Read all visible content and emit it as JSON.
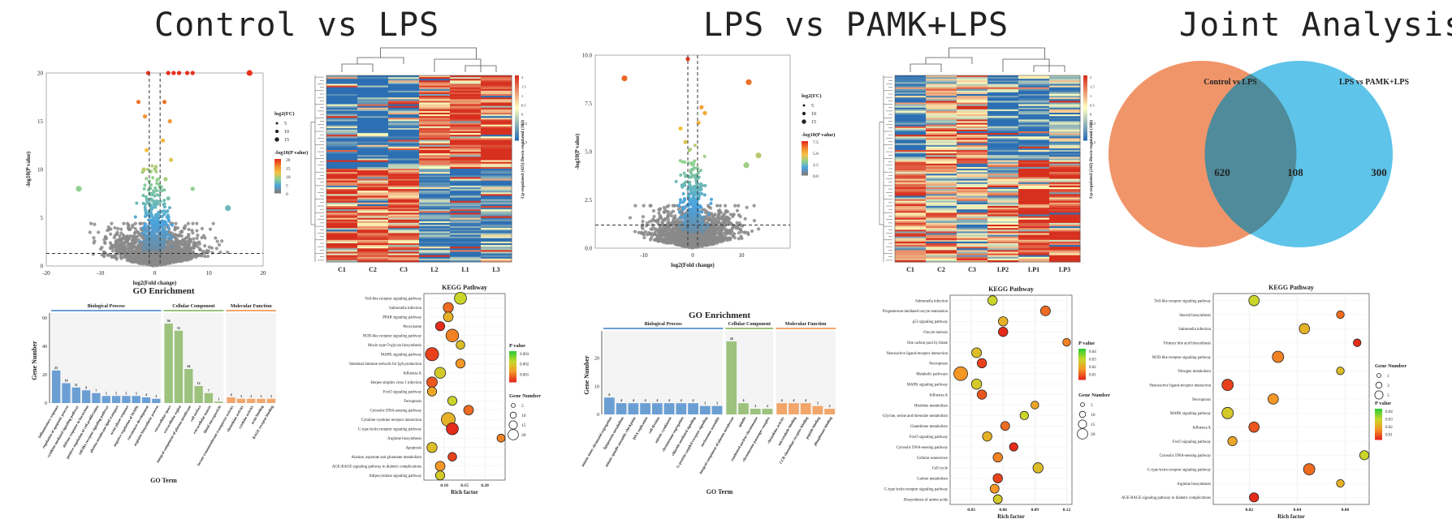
{
  "titles": {
    "control_vs_lps": "Control vs LPS",
    "lps_vs_pamk": "LPS vs PAMK+LPS",
    "joint": "Joint Analysis"
  },
  "colors": {
    "gene_bars_bp": "#6b9fd4",
    "gene_bars_cc": "#9cc27d",
    "gene_bars_mf": "#f2a66b",
    "venn_left": "#f0956a",
    "venn_right": "#5ec4ea",
    "heat_high": "#d7301f",
    "heat_mid": "#ffffbf",
    "heat_low": "#2c6fb3"
  },
  "chart_data": [
    {
      "id": "volcano1",
      "type": "scatter",
      "title": "",
      "xlabel": "log2(Fold change)",
      "ylabel": "-log10(P value)",
      "xlim": [
        -20,
        20
      ],
      "ylim": [
        0,
        20
      ],
      "x_ticks": [
        "-20",
        "-10",
        "0",
        "10",
        "20"
      ],
      "y_ticks": [
        "0",
        "5",
        "10",
        "15",
        "20"
      ],
      "legend_size_title": "log2(FC)",
      "legend_size_values": [
        "5",
        "10",
        "15"
      ],
      "legend_color_title": "-log10(P value)",
      "legend_color_values": [
        "20",
        "15",
        "10",
        "5",
        "0"
      ],
      "highlight_points": [
        {
          "x": 17.5,
          "y": 20
        },
        {
          "x": 2.5,
          "y": 20
        },
        {
          "x": 3.5,
          "y": 20
        },
        {
          "x": 4.5,
          "y": 20
        },
        {
          "x": 6,
          "y": 20
        },
        {
          "x": 7,
          "y": 20
        },
        {
          "x": -1.2,
          "y": 20
        },
        {
          "x": -3,
          "y": 17
        },
        {
          "x": 1.8,
          "y": 17
        },
        {
          "x": -1.8,
          "y": 15.5
        },
        {
          "x": 2.8,
          "y": 15
        },
        {
          "x": 1.5,
          "y": 13
        },
        {
          "x": -1.5,
          "y": 12
        },
        {
          "x": 3,
          "y": 11
        },
        {
          "x": -2,
          "y": 10
        },
        {
          "x": 2,
          "y": 9
        },
        {
          "x": 7,
          "y": 8
        },
        {
          "x": 13.5,
          "y": 6
        },
        {
          "x": -14,
          "y": 8
        },
        {
          "x": 2.5,
          "y": 7
        }
      ]
    },
    {
      "id": "heatmap1",
      "type": "heatmap",
      "columns": [
        "C1",
        "C2",
        "C3",
        "L2",
        "L1",
        "L3"
      ],
      "side_label": "Up-regulated (425)   Down-regulated (303)",
      "scale": [
        "2",
        "1.5",
        "1",
        "0.5",
        "0",
        "-0.5",
        "-1",
        "-1.5"
      ]
    },
    {
      "id": "go1",
      "type": "bar",
      "title": "GO Enrichment",
      "xlabel": "GO Term",
      "ylabel": "Gene Number",
      "ylim": [
        0,
        60
      ],
      "y_ticks": [
        "0",
        "20",
        "40",
        "60"
      ],
      "groups": [
        "Biological Process",
        "Cellular Component",
        "Molecular Function"
      ],
      "categories": [
        "Inflammatory response",
        "regulation of apoptotic process",
        "cytokine-mediated signaling pathway",
        "defense response to bacterium",
        "positive regulation of cell proliferation",
        "toll-like receptor signaling pathway",
        "plasma membrane lipid transport",
        "acute phase response",
        "negative regulation of MAPK",
        "vasculature development",
        "arginine biosynthetic process",
        "extracellular space",
        "extracellular region",
        "integral component of plasma membrane",
        "cell surface",
        "extracellular matrix",
        "blood microparticle",
        "lactate transmembrane transporter activity",
        "chemokine activity",
        "cytokine activity",
        "actin binding",
        "RAGE receptor binding"
      ],
      "group_of": [
        0,
        0,
        0,
        0,
        0,
        0,
        0,
        0,
        0,
        0,
        0,
        1,
        1,
        1,
        1,
        1,
        1,
        2,
        2,
        2,
        2,
        2
      ],
      "values": [
        23,
        14,
        11,
        9,
        7,
        5,
        5,
        5,
        5,
        4,
        3,
        56,
        51,
        24,
        12,
        7,
        1,
        4,
        3,
        3,
        3,
        3
      ]
    },
    {
      "id": "kegg1",
      "type": "scatter",
      "title": "KEGG Pathway",
      "xlabel": "Rich factor",
      "x_ticks": [
        "0.10",
        "0.15",
        "0.20"
      ],
      "xlim": [
        0.05,
        0.25
      ],
      "legend_color_title": "P value",
      "legend_color_values": [
        "0.003",
        "0.002",
        "0.001"
      ],
      "legend_size_title": "Gene Number",
      "legend_size_values": [
        "5",
        "10",
        "15",
        "20"
      ],
      "categories": [
        "Toll-like receptor signaling pathway",
        "Salmonella infection",
        "PPAR signaling pathway",
        "Peroxisome",
        "NOD-like receptor signaling pathway",
        "Mucin type O-glycan biosynthesis",
        "MAPK signaling pathway",
        "Intestinal immune network for IgA production",
        "Influenza A",
        "Herpes simplex virus 1 infection",
        "FoxO signaling pathway",
        "Ferroptosis",
        "Cytosolic DNA-sensing pathway",
        "Cytokine-cytokine receptor interaction",
        "C-type lectin receptor signaling pathway",
        "Arginine biosynthesis",
        "Apoptosis",
        "Alanine, aspartate and glutamate metabolism",
        "AGE-RAGE signaling pathway in diabetic complications",
        "Adipocytokine signaling pathway"
      ],
      "x": [
        0.14,
        0.11,
        0.11,
        0.09,
        0.12,
        0.14,
        0.07,
        0.14,
        0.09,
        0.07,
        0.07,
        0.12,
        0.16,
        0.11,
        0.12,
        0.24,
        0.07,
        0.12,
        0.09,
        0.09
      ],
      "size": [
        12,
        7,
        6,
        5,
        14,
        4,
        16,
        5,
        9,
        8,
        5,
        5,
        6,
        18,
        12,
        3,
        7,
        4,
        6,
        5
      ]
    },
    {
      "id": "volcano2",
      "type": "scatter",
      "xlabel": "log2(Fold change)",
      "ylabel": "-log10(P value)",
      "xlim": [
        -20,
        20
      ],
      "ylim": [
        0,
        10
      ],
      "x_ticks": [
        "-10",
        "0",
        "10"
      ],
      "y_ticks": [
        "0.0",
        "2.5",
        "5.0",
        "7.5",
        "10.0"
      ],
      "legend_size_title": "log2(FC)",
      "legend_size_values": [
        "5",
        "10",
        "15"
      ],
      "legend_color_title": "-log10(P value)",
      "legend_color_values": [
        "7.5",
        "5.0",
        "2.5",
        "0.0"
      ],
      "highlight_points": [
        {
          "x": -14,
          "y": 8.8
        },
        {
          "x": 11.5,
          "y": 8.6
        },
        {
          "x": -1,
          "y": 9.8
        },
        {
          "x": 1.8,
          "y": 7.3
        },
        {
          "x": 2.5,
          "y": 7.0
        },
        {
          "x": 1.2,
          "y": 6.5
        },
        {
          "x": -2.5,
          "y": 6.2
        },
        {
          "x": 13.5,
          "y": 4.8
        },
        {
          "x": 11,
          "y": 4.3
        },
        {
          "x": -1.5,
          "y": 5.5
        }
      ]
    },
    {
      "id": "heatmap2",
      "type": "heatmap",
      "columns": [
        "C1",
        "C2",
        "C3",
        "LP2",
        "LP1",
        "LP3"
      ],
      "side_label": "Up-regulated (242)   Down-regulated (166)",
      "scale": [
        "2",
        "1.5",
        "1",
        "0.5",
        "0",
        "-0.5",
        "-1",
        "-1.5"
      ]
    },
    {
      "id": "go2",
      "type": "bar",
      "title": "GO Enrichment",
      "xlabel": "GO Term",
      "ylabel": "Gene Number",
      "ylim": [
        0,
        28
      ],
      "y_ticks": [
        "0",
        "10",
        "20"
      ],
      "groups": [
        "Biological Process",
        "Cellular Component",
        "Molecular Function"
      ],
      "categories": [
        "mitotic sister chromatid segregation",
        "lipoprotein metabolism",
        "mitotic spindle assembly checkpoint",
        "DNA replication",
        "cell division",
        "mitotic cytokinesis",
        "chromosome segregation",
        "chloride-mediated signaling",
        "G-protein coupled receptor signaling",
        "nucleosome assembly",
        "integral component of plasma membrane",
        "spindle",
        "condensed nuclear chromosome",
        "chromosome passenger complex",
        "chemokine activity",
        "microtubule binding",
        "CCR chemokine receptor binding",
        "peptide binding",
        "phosphatase binding"
      ],
      "group_of": [
        0,
        0,
        0,
        0,
        0,
        0,
        0,
        0,
        0,
        0,
        1,
        1,
        1,
        1,
        2,
        2,
        2,
        2,
        2
      ],
      "values": [
        6,
        4,
        4,
        4,
        4,
        4,
        4,
        4,
        3,
        3,
        26,
        4,
        2,
        2,
        4,
        4,
        4,
        3,
        2
      ]
    },
    {
      "id": "kegg2",
      "type": "scatter",
      "title": "KEGG Pathway",
      "xlabel": "Rich factor",
      "x_ticks": [
        "0.03",
        "0.06",
        "0.09",
        "0.12"
      ],
      "xlim": [
        0.01,
        0.125
      ],
      "legend_color_title": "P value",
      "legend_color_values": [
        "0.04",
        "0.03",
        "0.02",
        "0.01"
      ],
      "legend_size_title": "Gene Number",
      "legend_size_values": [
        "5",
        "10",
        "15",
        "20"
      ],
      "categories": [
        "Salmonella infection",
        "Progesterone-mediated oocyte maturation",
        "p53 signaling pathway",
        "Oocyte meiosis",
        "One carbon pool by folate",
        "Neuroactive ligand-receptor interaction",
        "Necroptosis",
        "Metabolic pathways",
        "MAPK signaling pathway",
        "Influenza A",
        "Histidine metabolism",
        "Glycine, serine and threonine metabolism",
        "Glutathione metabolism",
        "FoxO signaling pathway",
        "Cytosolic DNA-sensing pathway",
        "Cellular senescence",
        "Cell cycle",
        "Carbon metabolism",
        "C-type lectin receptor signaling pathway",
        "Biosynthesis of amino acids"
      ],
      "x": [
        0.05,
        0.1,
        0.06,
        0.06,
        0.12,
        0.035,
        0.04,
        0.02,
        0.035,
        0.04,
        0.09,
        0.08,
        0.062,
        0.045,
        0.07,
        0.055,
        0.093,
        0.055,
        0.052,
        0.055
      ],
      "size": [
        6,
        7,
        6,
        6,
        3,
        7,
        6,
        20,
        8,
        6,
        3,
        4,
        5,
        6,
        4,
        6,
        8,
        6,
        5,
        5
      ]
    },
    {
      "id": "venn",
      "type": "venn",
      "set_a": "Control vs LPS",
      "set_b": "LPS vs PAMK+LPS",
      "only_a": 620,
      "both": 108,
      "only_b": 300
    },
    {
      "id": "kegg3",
      "type": "scatter",
      "title": "KEGG Pathway",
      "xlabel": "Rich factor",
      "x_ticks": [
        "0.02",
        "0.04",
        "0.06"
      ],
      "xlim": [
        0.005,
        0.07
      ],
      "legend_color_title": "P value",
      "legend_color_values": [
        "0.04",
        "0.03",
        "0.02",
        "0.01"
      ],
      "legend_size_title": "Gene Number",
      "legend_size_values": [
        "1",
        "3",
        "5"
      ],
      "categories": [
        "Toll-like receptor signaling pathway",
        "Steroid biosynthesis",
        "Salmonella infection",
        "Primary bile acid biosynthesis",
        "NOD-like receptor signaling pathway",
        "Nitrogen metabolism",
        "Neuroactive ligand-receptor interaction",
        "Necroptosis",
        "MAPK signaling pathway",
        "Influenza A",
        "FoxO signaling pathway",
        "Cytosolic DNA-sensing pathway",
        "C-type lectin receptor signaling pathway",
        "Arginine biosynthesis",
        "AGE-RAGE signaling pathway in diabetic complications"
      ],
      "x": [
        0.022,
        0.058,
        0.043,
        0.065,
        0.032,
        0.058,
        0.011,
        0.03,
        0.011,
        0.022,
        0.013,
        0.068,
        0.045,
        0.058,
        0.022
      ],
      "size": [
        3,
        1,
        3,
        1,
        4,
        1,
        4,
        3,
        4,
        3,
        2,
        2,
        4,
        1,
        2
      ]
    }
  ]
}
